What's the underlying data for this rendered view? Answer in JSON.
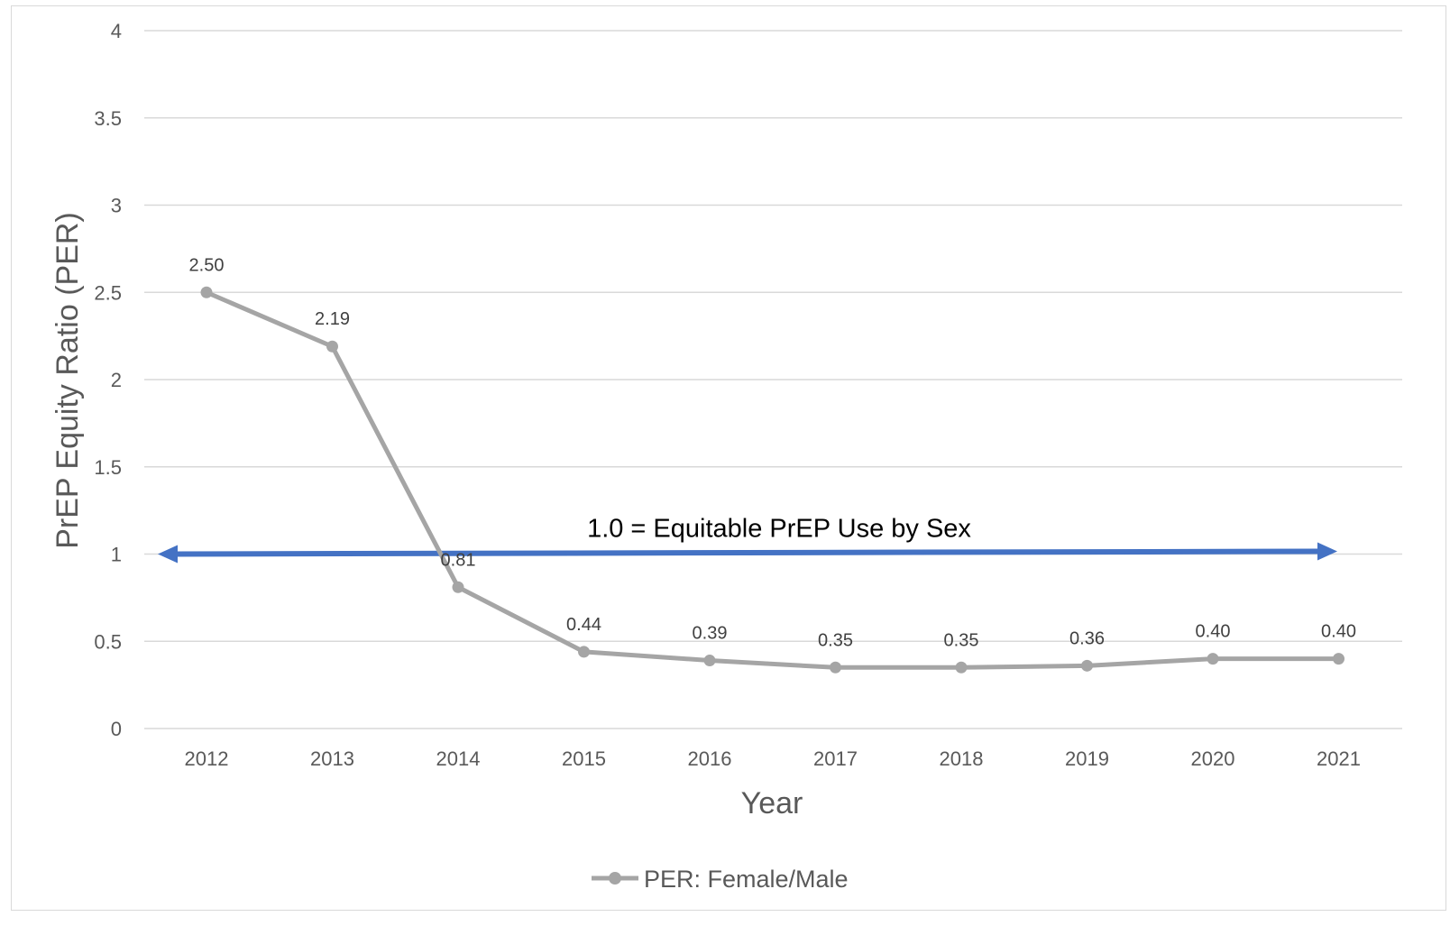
{
  "chart_data": {
    "type": "line",
    "title": "",
    "xlabel": "Year",
    "ylabel": "PrEP Equity Ratio (PER)",
    "categories": [
      "2012",
      "2013",
      "2014",
      "2015",
      "2016",
      "2017",
      "2018",
      "2019",
      "2020",
      "2021"
    ],
    "series": [
      {
        "name": "PER: Female/Male",
        "color": "#a5a5a5",
        "values": [
          2.5,
          2.19,
          0.81,
          0.44,
          0.39,
          0.35,
          0.35,
          0.36,
          0.4,
          0.4
        ],
        "labels": [
          "2.50",
          "2.19",
          "0.81",
          "0.44",
          "0.39",
          "0.35",
          "0.35",
          "0.36",
          "0.40",
          "0.40"
        ]
      }
    ],
    "ylim": [
      0,
      4
    ],
    "yticks": [
      "0",
      "0.5",
      "1",
      "1.5",
      "2",
      "2.5",
      "3",
      "3.5",
      "4"
    ],
    "ytick_values": [
      0,
      0.5,
      1,
      1.5,
      2,
      2.5,
      3,
      3.5,
      4
    ],
    "grid": true,
    "legend_position": "bottom",
    "reference_line": {
      "value": 1.0,
      "label": "1.0 = Equitable PrEP Use by Sex",
      "color": "#4472c4"
    }
  }
}
